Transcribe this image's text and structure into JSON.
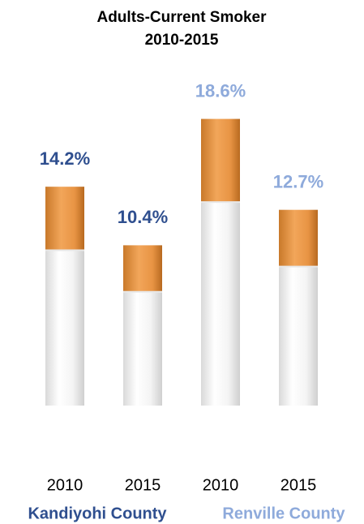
{
  "chart_data": {
    "type": "bar",
    "title": "Adults-Current Smoker",
    "subtitle": "2010-2015",
    "series": [
      {
        "name": "Kandiyohi County",
        "color": "#2f4f8f",
        "categories": [
          "2010",
          "2015"
        ],
        "values": [
          14.2,
          10.4
        ],
        "value_labels": [
          "14.2%",
          "10.4%"
        ]
      },
      {
        "name": "Renville County",
        "color": "#8eaadb",
        "categories": [
          "2010",
          "2015"
        ],
        "values": [
          18.6,
          12.7
        ],
        "value_labels": [
          "18.6%",
          "12.7%"
        ]
      }
    ]
  }
}
